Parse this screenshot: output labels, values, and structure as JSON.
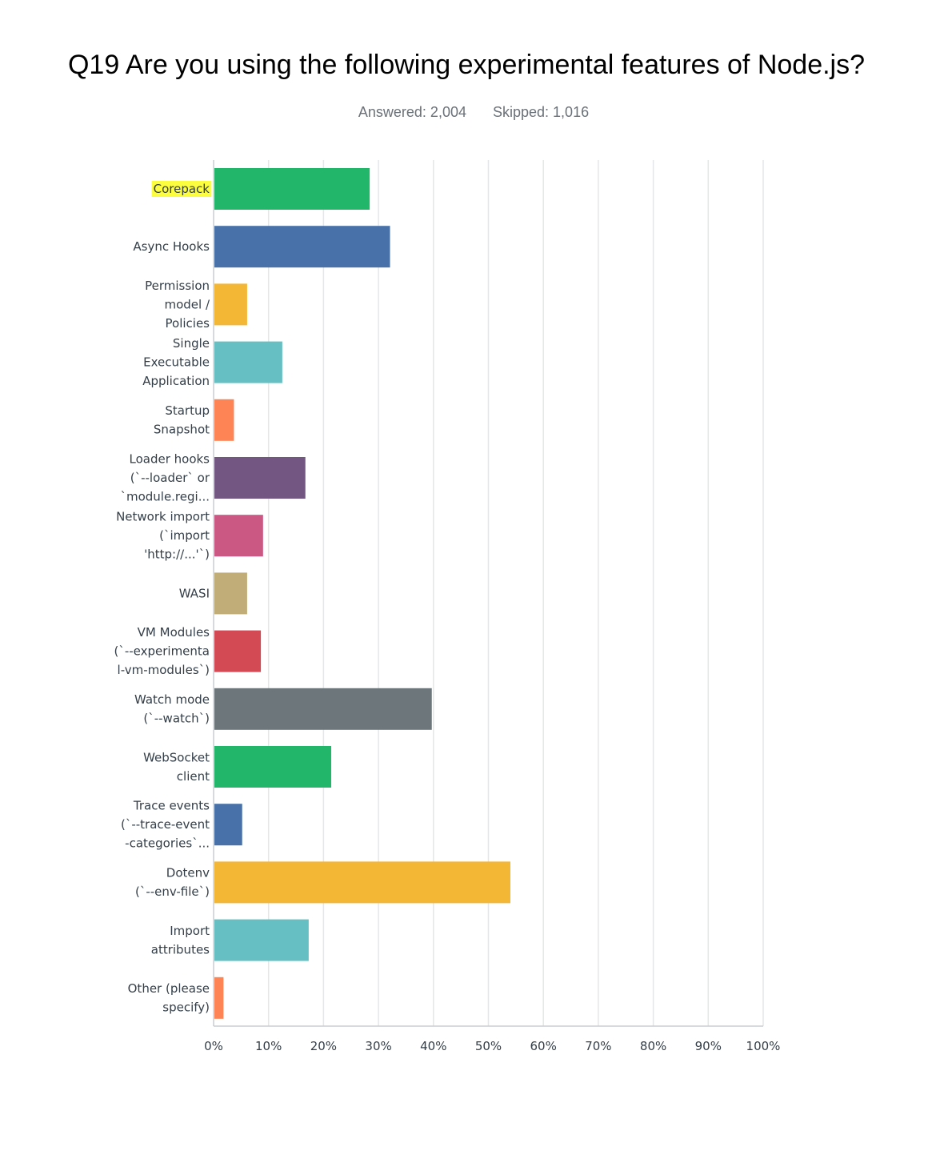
{
  "title": "Q19 Are you using the following experimental features of Node.js?",
  "summary": {
    "answered": "Answered: 2,004",
    "skipped": "Skipped: 1,016"
  },
  "colors": {
    "gridline": "#e4e6e8",
    "axis": "#c9cdd1",
    "label_text": "#333e48",
    "highlight": "#fdfd3f"
  },
  "chart_data": {
    "type": "bar",
    "orientation": "horizontal",
    "title": "Q19 Are you using the following experimental features of Node.js?",
    "xlabel": "",
    "ylabel": "",
    "xlim": [
      0,
      100
    ],
    "grid": true,
    "x_ticks": [
      "0%",
      "10%",
      "20%",
      "30%",
      "40%",
      "50%",
      "60%",
      "70%",
      "80%",
      "90%",
      "100%"
    ],
    "highlighted_category": "Corepack",
    "categories": [
      "Corepack",
      "Async Hooks",
      "Permission model / Policies",
      "Single Executable Application",
      "Startup Snapshot",
      "Loader hooks (`--loader` or `module.regi...",
      "Network import (`import 'http://...'`)",
      "WASI",
      "VM Modules (`--experimental-vm-modules`)",
      "Watch mode (`--watch`)",
      "WebSocket client",
      "Trace events (`--trace-event-categories`...",
      "Dotenv (`--env-file`)",
      "Import attributes",
      "Other (please specify)"
    ],
    "category_lines": [
      [
        "Corepack"
      ],
      [
        "Async Hooks"
      ],
      [
        "Permission",
        "model /",
        "Policies"
      ],
      [
        "Single",
        "Executable",
        "Application"
      ],
      [
        "Startup",
        "Snapshot"
      ],
      [
        "Loader hooks",
        "(`--loader` or",
        "`module.regi..."
      ],
      [
        "Network import",
        "(`import",
        "'http://...'`)"
      ],
      [
        "WASI"
      ],
      [
        "VM Modules",
        "(`--experimenta",
        "l-vm-modules`)"
      ],
      [
        "Watch mode",
        "(`--watch`)"
      ],
      [
        "WebSocket",
        "client"
      ],
      [
        "Trace events",
        "(`--trace-event",
        "-categories`..."
      ],
      [
        "Dotenv",
        "(`--env-file`)"
      ],
      [
        "Import",
        "attributes"
      ],
      [
        "Other (please",
        "specify)"
      ]
    ],
    "values": [
      28.4,
      32.1,
      6.1,
      12.5,
      3.7,
      16.7,
      9.0,
      6.1,
      8.6,
      39.7,
      21.4,
      5.2,
      54.0,
      17.3,
      1.8
    ],
    "bar_colors": [
      "#21b66a",
      "#4870a9",
      "#f4b635",
      "#66c0c3",
      "#fe8456",
      "#745682",
      "#cb5883",
      "#c0ad78",
      "#d44a54",
      "#6d767b",
      "#21b66a",
      "#4870a9",
      "#f4b635",
      "#66c0c3",
      "#fe8456"
    ]
  }
}
